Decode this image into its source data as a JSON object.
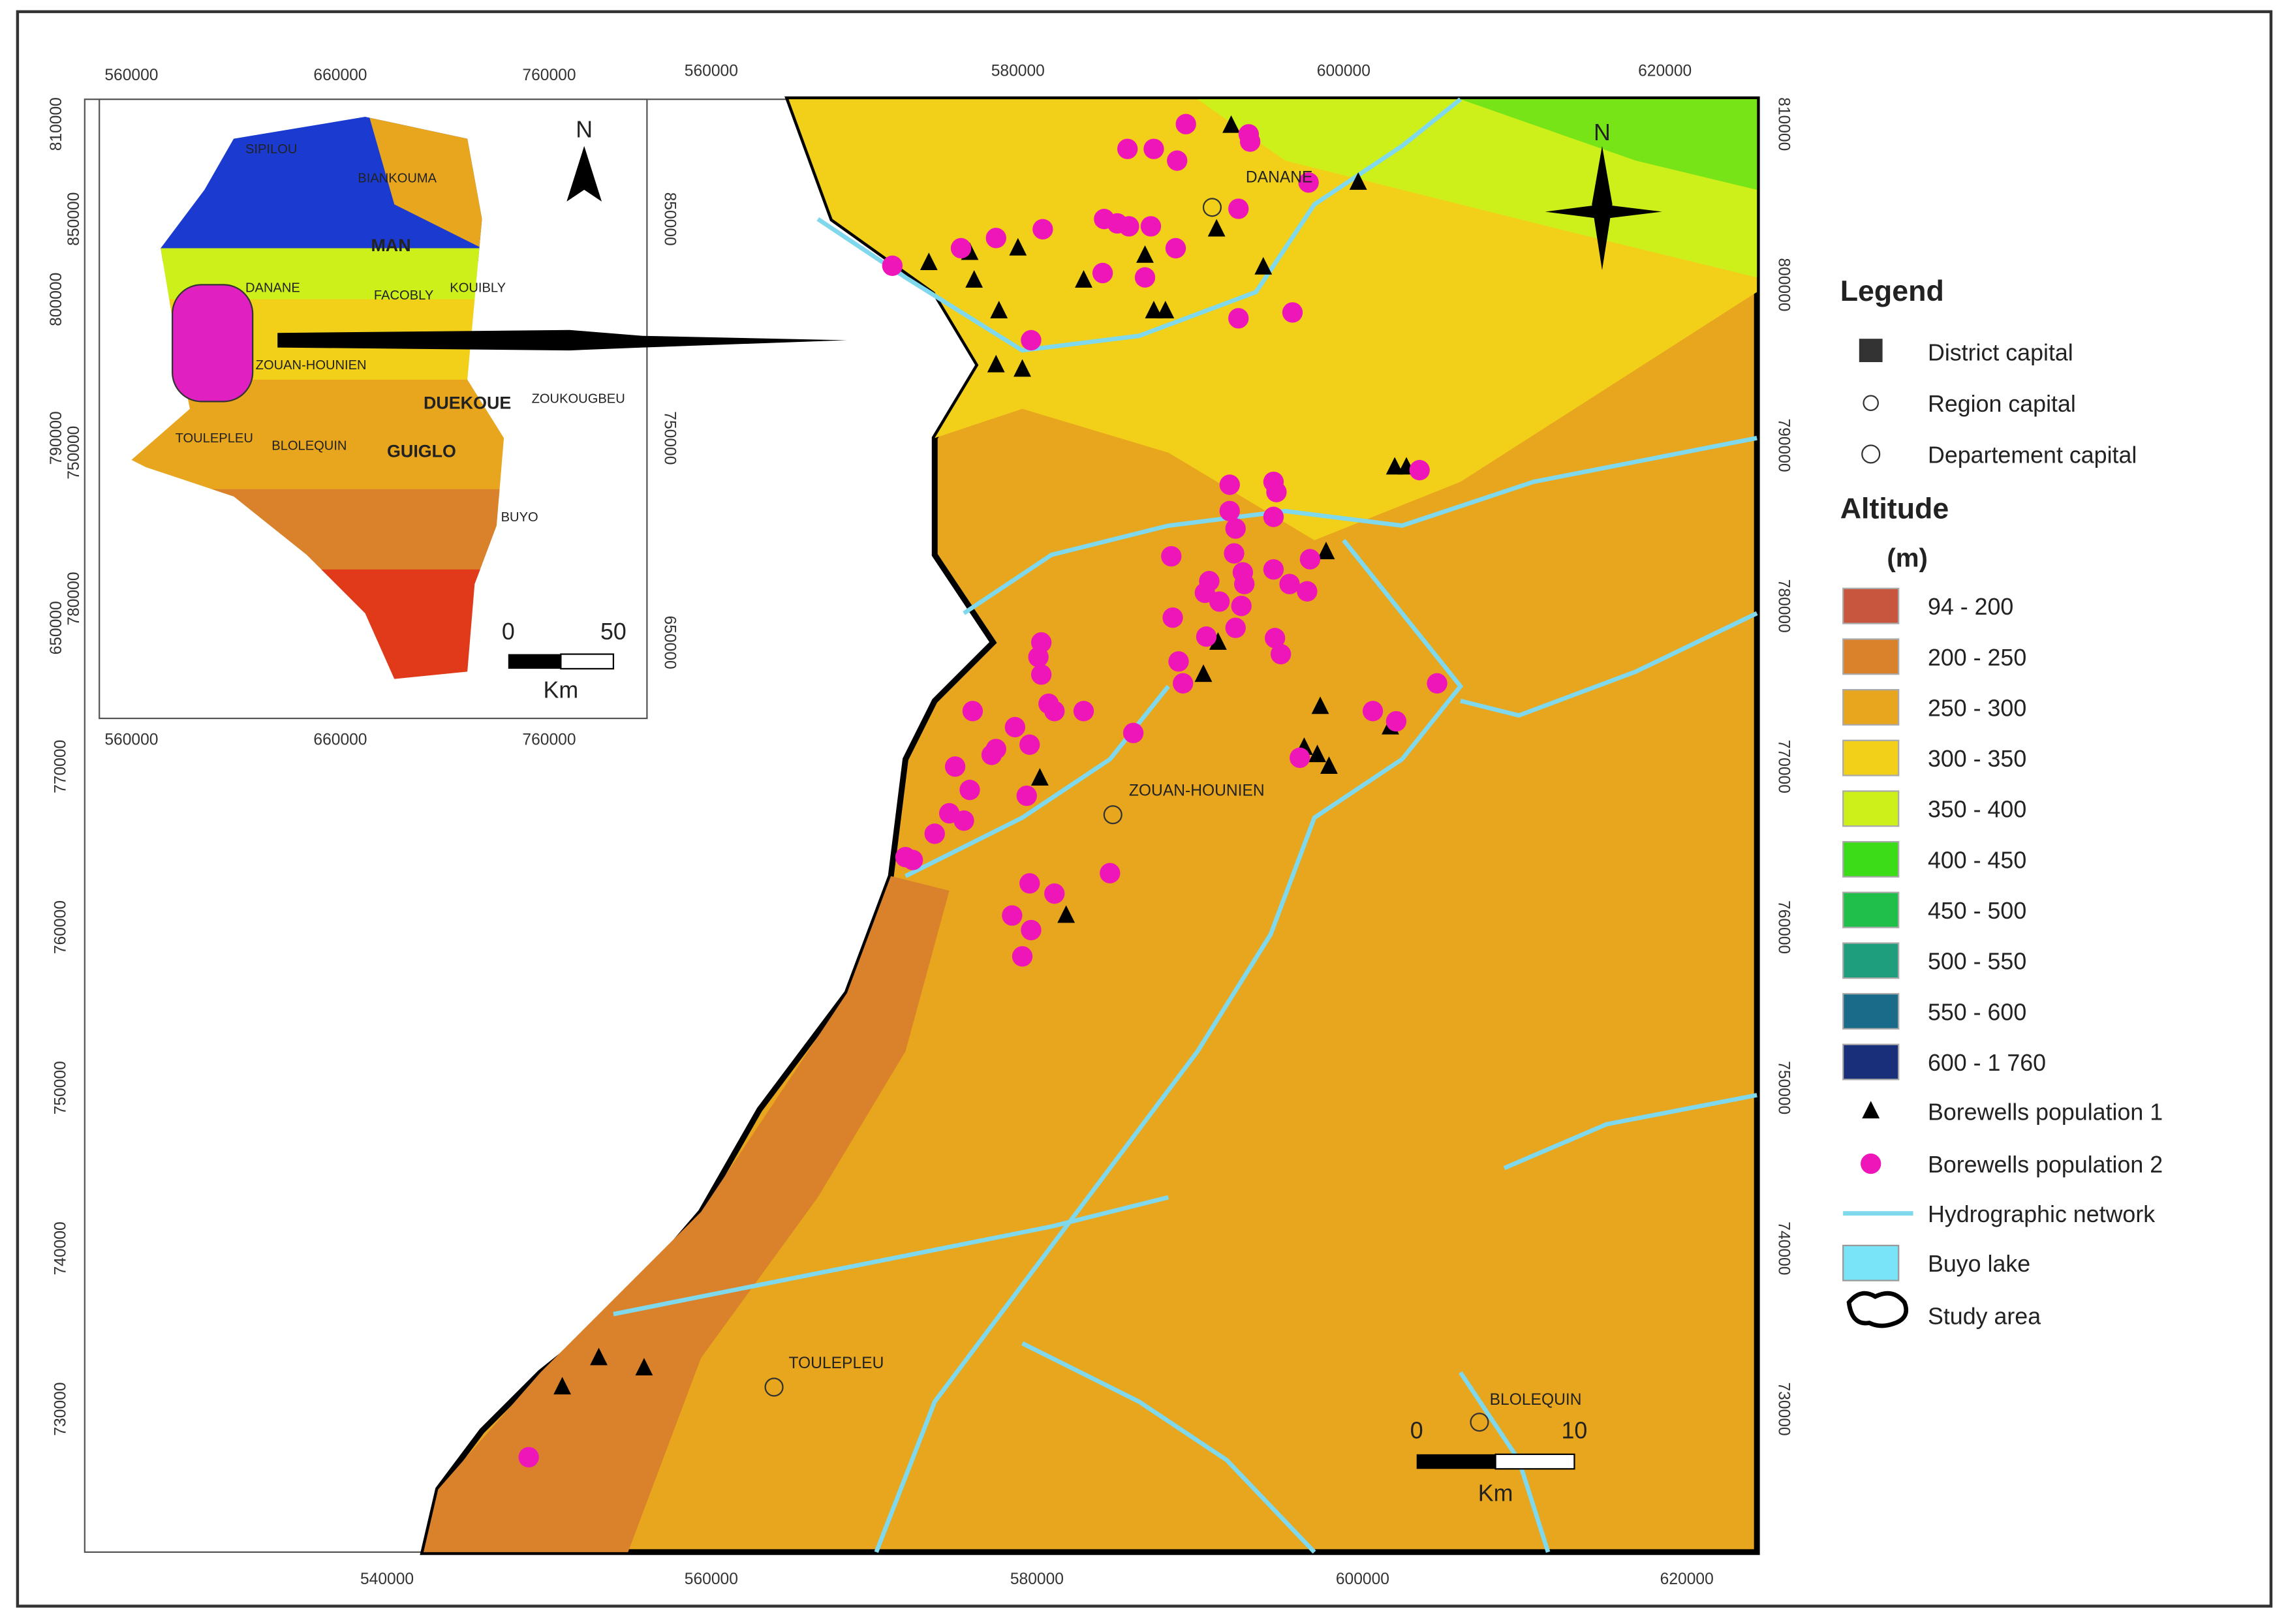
{
  "map": {
    "main_axis": {
      "top": [
        560000,
        580000,
        600000,
        620000
      ],
      "bottom": [
        540000,
        560000,
        580000,
        600000,
        620000
      ],
      "right": [
        810000,
        800000,
        790000,
        780000,
        770000,
        760000,
        750000,
        740000,
        730000
      ],
      "left": [
        770000,
        760000,
        750000,
        740000,
        730000
      ]
    },
    "inset_axis": {
      "top": [
        560000,
        660000,
        760000
      ],
      "bottom": [
        560000,
        660000,
        760000
      ],
      "left": [
        810000,
        850000,
        800000,
        750000,
        790000,
        780000,
        650000
      ],
      "right": [
        850000,
        750000,
        650000
      ]
    },
    "places": [
      "DANANE",
      "ZOUAN-HOUNIEN",
      "TOULEPLEU",
      "BLOLEQUIN"
    ],
    "inset_places": [
      "SIPILOU",
      "BIANKOUMA",
      "MAN",
      "FACOBLY",
      "KOUIBLY",
      "DANANE",
      "ZOUAN-HOUNIEN",
      "DUEKOUE",
      "ZOUKOUGBEU",
      "TOULEPLEU",
      "BLOLEQUIN",
      "GUIGLO",
      "BUYO"
    ],
    "north": "N",
    "inset_north": "N",
    "scale_bar": {
      "start": "0",
      "end": "10",
      "unit": "Km"
    },
    "inset_scale_bar": {
      "start": "0",
      "end": "50",
      "unit": "Km"
    },
    "legend": {
      "title": "Legend",
      "symbols": [
        "District capital",
        "Region capital",
        "Departement capital"
      ],
      "altitude_title": "Altitude",
      "altitude_unit": "(m)",
      "classes": [
        {
          "label": "94 - 200",
          "color": "#c8553d"
        },
        {
          "label": "200 - 250",
          "color": "#d9822b"
        },
        {
          "label": "250 - 300",
          "color": "#e8a51e"
        },
        {
          "label": "300 - 350",
          "color": "#f2d01a"
        },
        {
          "label": "350 - 400",
          "color": "#cdf01a"
        },
        {
          "label": "400 - 450",
          "color": "#3ddc18"
        },
        {
          "label": "450 - 500",
          "color": "#1fbf4a"
        },
        {
          "label": "500 - 550",
          "color": "#1f9e7e"
        },
        {
          "label": "550 - 600",
          "color": "#1a6b8a"
        },
        {
          "label": "600 - 1 760",
          "color": "#1a2f7a"
        }
      ],
      "features": [
        "Borewells population 1",
        "Borewells population 2",
        "Hydrographic network",
        "Buyo lake",
        "Study area"
      ]
    }
  }
}
